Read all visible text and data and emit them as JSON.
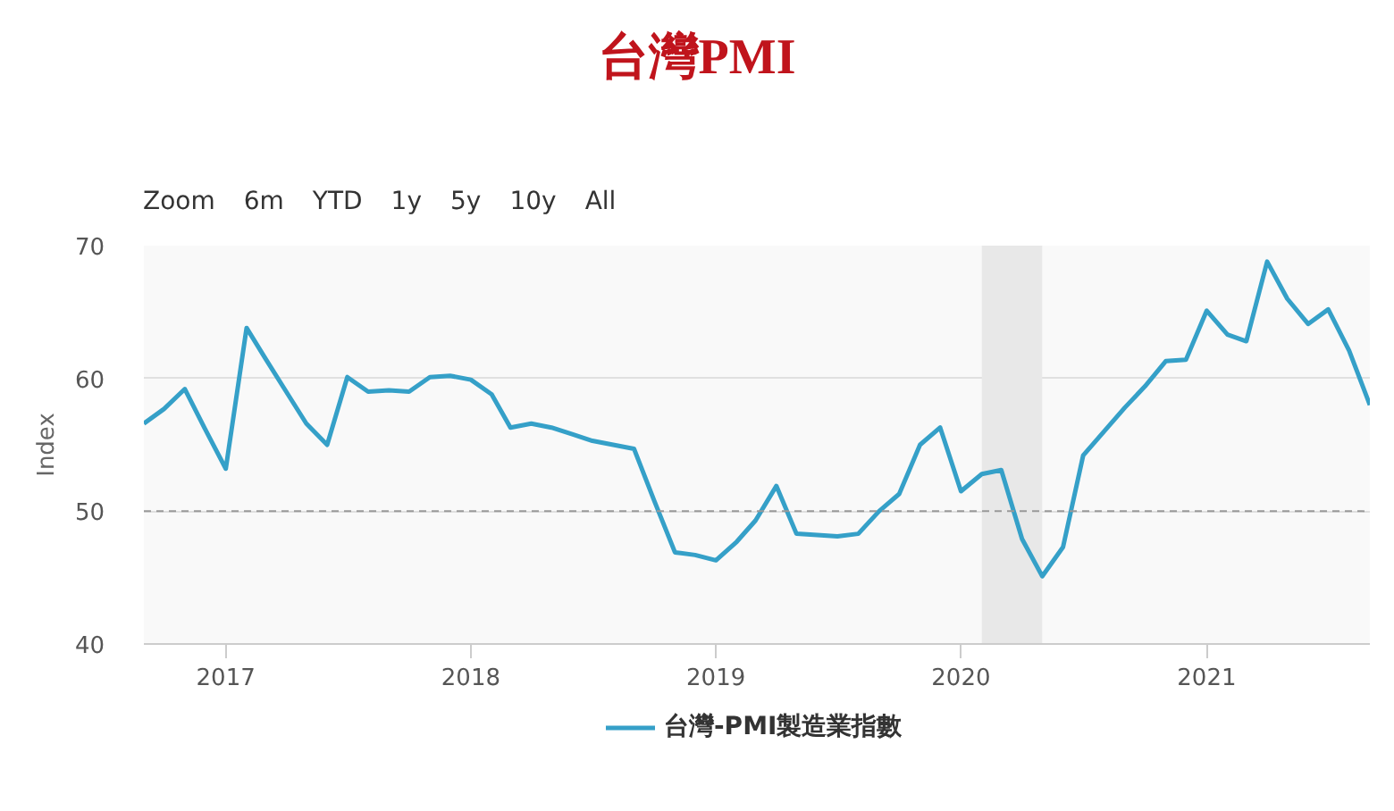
{
  "chart_data": {
    "type": "line",
    "title": "台灣PMI",
    "ylabel": "Index",
    "annotations": [
      "Zoom",
      "6m",
      "YTD",
      "1y",
      "5y",
      "10y",
      "All"
    ],
    "x": [
      "2016-09",
      "2016-10",
      "2016-11",
      "2016-12",
      "2017-01",
      "2017-02",
      "2017-03",
      "2017-04",
      "2017-05",
      "2017-06",
      "2017-07",
      "2017-08",
      "2017-09",
      "2017-10",
      "2017-11",
      "2017-12",
      "2018-01",
      "2018-02",
      "2018-03",
      "2018-04",
      "2018-05",
      "2018-06",
      "2018-07",
      "2018-08",
      "2018-09",
      "2018-10",
      "2018-11",
      "2018-12",
      "2019-01",
      "2019-02",
      "2019-03",
      "2019-04",
      "2019-05",
      "2019-06",
      "2019-07",
      "2019-08",
      "2019-09",
      "2019-10",
      "2019-11",
      "2019-12",
      "2020-01",
      "2020-02",
      "2020-03",
      "2020-04",
      "2020-05",
      "2020-06",
      "2020-07",
      "2020-08",
      "2020-09",
      "2020-10",
      "2020-11",
      "2020-12",
      "2021-01",
      "2021-02",
      "2021-03",
      "2021-04",
      "2021-05",
      "2021-06",
      "2021-07",
      "2021-08",
      "2021-09"
    ],
    "series": [
      {
        "name": "台灣-PMI製造業指數",
        "color": "#35a0c8",
        "values": [
          56.6,
          57.7,
          59.2,
          56.2,
          53.2,
          63.8,
          61.5,
          59.0,
          56.6,
          55.0,
          60.1,
          59.0,
          59.1,
          59.0,
          60.1,
          60.2,
          59.9,
          58.8,
          56.3,
          56.6,
          56.3,
          55.8,
          55.3,
          55.0,
          54.7,
          50.8,
          46.9,
          46.7,
          46.3,
          47.7,
          49.3,
          51.9,
          48.3,
          48.2,
          48.1,
          48.3,
          50.0,
          51.3,
          55.0,
          56.3,
          51.5,
          52.8,
          53.1,
          47.9,
          45.1,
          47.3,
          54.2,
          56.0,
          57.8,
          59.4,
          61.3,
          61.4,
          65.1,
          63.3,
          62.8,
          68.8,
          66.0,
          64.1,
          65.2,
          62.1,
          58.0
        ]
      }
    ],
    "xlim": [
      "2016-09",
      "2021-09"
    ],
    "xticks": [
      "2017",
      "2018",
      "2019",
      "2020",
      "2021"
    ],
    "ylim": [
      40,
      70
    ],
    "yticks": [
      40,
      50,
      60,
      70
    ],
    "ref_lines": [
      {
        "axis": "y",
        "value": 50,
        "line_style": "dashed",
        "color": "#999999"
      }
    ],
    "bands": [
      {
        "axis": "x",
        "from": "2020-02",
        "to": "2020-05",
        "color": "#e8e8e8"
      }
    ],
    "grid": "y",
    "legend": "bottom",
    "line_style": "solid"
  }
}
